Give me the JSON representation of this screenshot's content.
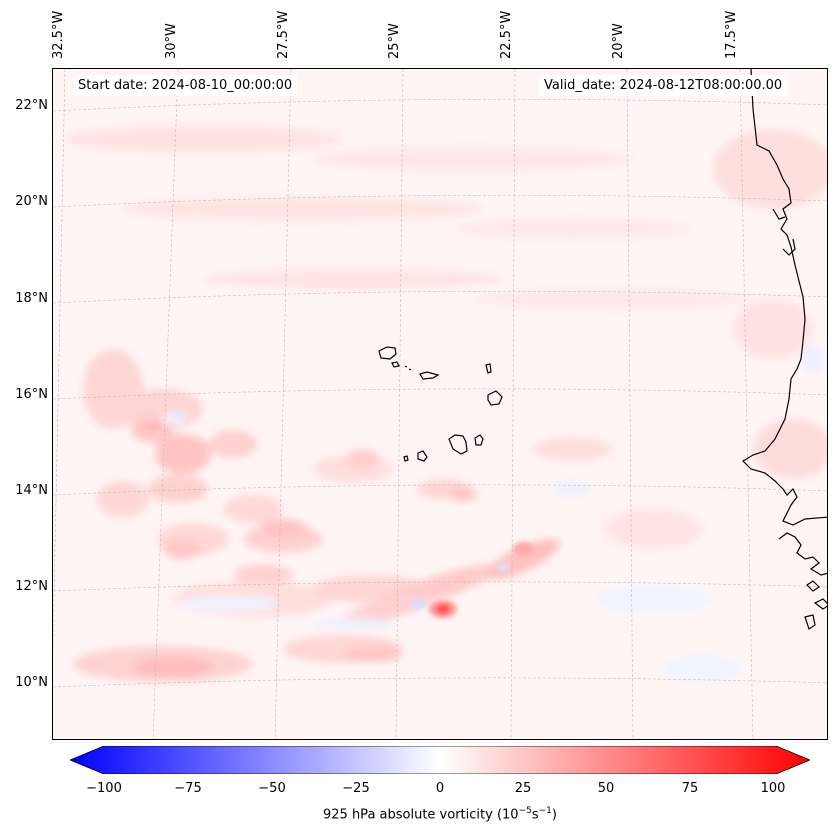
{
  "header": {
    "start_date": "Start date: 2024-08-10_00:00:00",
    "valid_date": "Valid_date: 2024-08-12T08:00:00.00"
  },
  "longitude_labels": [
    "32.5°W",
    "30°W",
    "27.5°W",
    "25°W",
    "22.5°W",
    "20°W",
    "17.5°W"
  ],
  "latitude_labels": [
    "22°N",
    "20°N",
    "18°N",
    "16°N",
    "14°N",
    "12°N",
    "10°N"
  ],
  "colorbar": {
    "label_prefix": "925 hPa absolute vorticity (10",
    "label_exp1": "−5",
    "label_mid": "s",
    "label_exp2": "−1",
    "label_suffix": ")",
    "ticks": [
      "−100",
      "−75",
      "−50",
      "−25",
      "0",
      "25",
      "50",
      "75",
      "100"
    ],
    "range": [
      -100,
      100
    ],
    "colormap": "bwr",
    "low_color": "#0000ff",
    "mid_color": "#ffffff",
    "high_color": "#ff0000"
  },
  "map": {
    "field": "925 hPa absolute vorticity",
    "gridlines": "dashed light gray",
    "features": [
      "Cape Verde islands",
      "West African coastline"
    ]
  }
}
